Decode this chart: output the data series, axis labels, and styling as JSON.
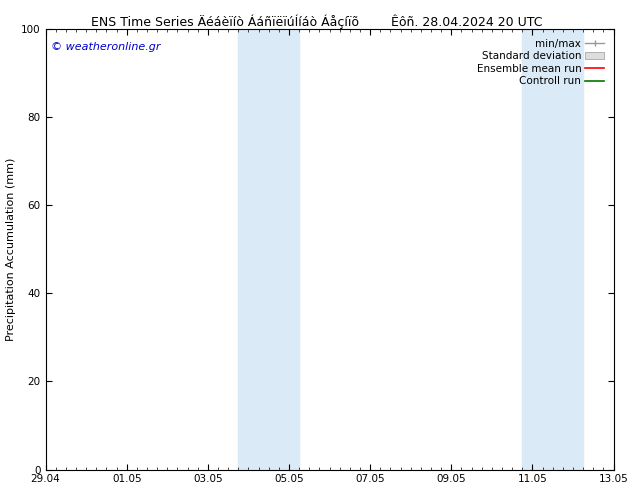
{
  "title_left": "ENS Time Series Äéáèïíò ÁáñïëïúÍíáò Áåçíïõ",
  "title_right": "Êôñ. 28.04.2024 20 UTC",
  "ylabel": "Precipitation Accumulation (mm)",
  "watermark": "© weatheronline.gr",
  "watermark_color": "#0000cc",
  "ylim": [
    0,
    100
  ],
  "yticks": [
    0,
    20,
    40,
    60,
    80,
    100
  ],
  "xtick_labels": [
    "29.04",
    "01.05",
    "03.05",
    "05.05",
    "07.05",
    "09.05",
    "11.05",
    "13.05"
  ],
  "xtick_positions": [
    0,
    2,
    4,
    6,
    8,
    10,
    12,
    14
  ],
  "xlim": [
    0,
    14
  ],
  "shaded_band1_x1": 4.75,
  "shaded_band1_x2": 6.25,
  "shaded_band2_x1": 11.75,
  "shaded_band2_x2": 13.25,
  "shaded_color": "#daeaf7",
  "background_color": "#ffffff",
  "title_fontsize": 9,
  "axis_fontsize": 8,
  "tick_fontsize": 7.5,
  "watermark_fontsize": 8,
  "legend_fontsize": 7.5
}
